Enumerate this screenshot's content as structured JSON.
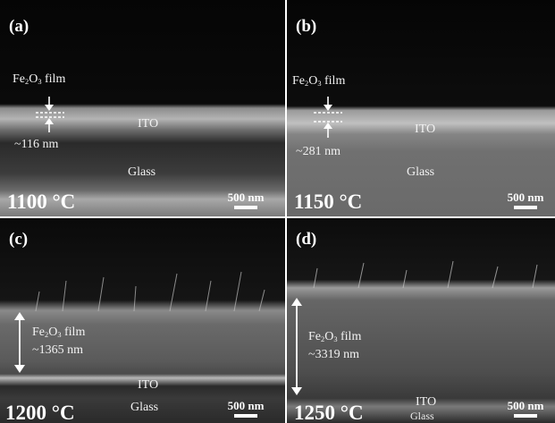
{
  "panels": [
    {
      "label": "(a)",
      "temperature": "1100 °C",
      "film_label": {
        "prefix": "Fe",
        "sub1": "2",
        "mid": "O",
        "sub2": "3",
        "suffix": " film"
      },
      "thickness": "~116 nm",
      "ito_label": "ITO",
      "glass_label": "Glass",
      "scale_bar": "500 nm"
    },
    {
      "label": "(b)",
      "temperature": "1150 °C",
      "film_label": {
        "prefix": "Fe",
        "sub1": "2",
        "mid": "O",
        "sub2": "3",
        "suffix": " film"
      },
      "thickness": "~281 nm",
      "ito_label": "ITO",
      "glass_label": "Glass",
      "scale_bar": "500 nm"
    },
    {
      "label": "(c)",
      "temperature": "1200 °C",
      "film_label": {
        "prefix": "Fe",
        "sub1": "2",
        "mid": "O",
        "sub2": "3",
        "suffix": " film"
      },
      "thickness": "~1365 nm",
      "ito_label": "ITO",
      "glass_label": "Glass",
      "scale_bar": "500 nm"
    },
    {
      "label": "(d)",
      "temperature": "1250 °C",
      "film_label": {
        "prefix": "Fe",
        "sub1": "2",
        "mid": "O",
        "sub2": "3",
        "suffix": " film"
      },
      "thickness": "~3319 nm",
      "ito_label": "ITO",
      "glass_label": "Glass",
      "scale_bar": "500 nm"
    }
  ],
  "colors": {
    "text": "#ffffff",
    "background": "#0b0b0b",
    "divider": "#ffffff"
  }
}
